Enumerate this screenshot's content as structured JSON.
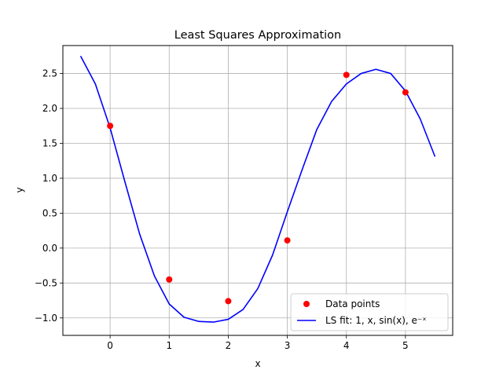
{
  "chart_data": {
    "type": "scatter",
    "title": "Least Squares Approximation",
    "xlabel": "x",
    "ylabel": "y",
    "xlim": [
      -0.8,
      5.8
    ],
    "ylim": [
      -1.25,
      2.9
    ],
    "xticks": [
      0,
      1,
      2,
      3,
      4,
      5
    ],
    "yticks": [
      -1.0,
      -0.5,
      0.0,
      0.5,
      1.0,
      1.5,
      2.0,
      2.5
    ],
    "xtick_labels": [
      "0",
      "1",
      "2",
      "3",
      "4",
      "5"
    ],
    "ytick_labels": [
      "−1.0",
      "−0.5",
      "0.0",
      "0.5",
      "1.0",
      "1.5",
      "2.0",
      "2.5"
    ],
    "grid": true,
    "legend_position": "lower-right",
    "series": [
      {
        "name": "Data points",
        "kind": "scatter",
        "color": "#ff0000",
        "x": [
          0,
          1,
          2,
          3,
          4,
          5
        ],
        "y": [
          1.75,
          -0.45,
          -0.76,
          0.11,
          2.48,
          2.23
        ]
      },
      {
        "name": "LS fit: 1, x, sin(x), e⁻ˣ",
        "kind": "line",
        "color": "#0000ff",
        "x": [
          -0.5,
          -0.25,
          0.0,
          0.25,
          0.5,
          0.75,
          1.0,
          1.25,
          1.5,
          1.75,
          2.0,
          2.25,
          2.5,
          2.75,
          3.0,
          3.25,
          3.5,
          3.75,
          4.0,
          4.25,
          4.5,
          4.75,
          5.0,
          5.25,
          5.5
        ],
        "y": [
          2.75,
          2.35,
          1.72,
          0.95,
          0.2,
          -0.4,
          -0.8,
          -0.99,
          -1.05,
          -1.06,
          -1.02,
          -0.88,
          -0.58,
          -0.1,
          0.52,
          1.12,
          1.7,
          2.1,
          2.35,
          2.5,
          2.56,
          2.5,
          2.25,
          1.85,
          1.31
        ]
      }
    ]
  }
}
